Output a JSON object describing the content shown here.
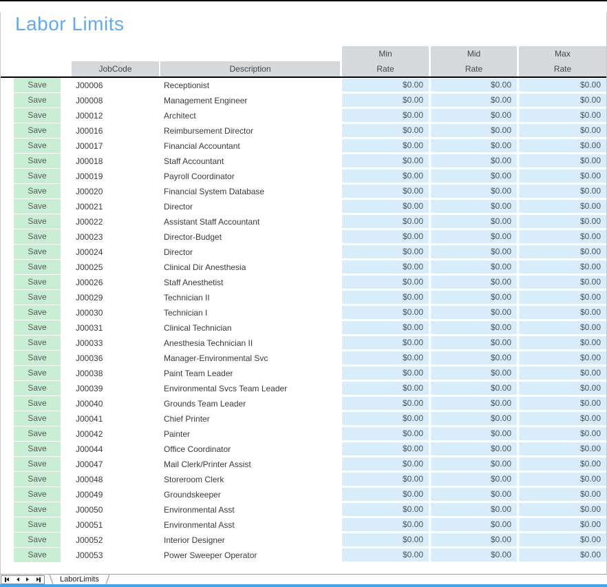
{
  "title": "Labor Limits",
  "table": {
    "headers": {
      "job_code": "JobCode",
      "description": "Description",
      "min_line1": "Min",
      "min_line2": "Rate",
      "mid_line1": "Mid",
      "mid_line2": "Rate",
      "max_line1": "Max",
      "max_line2": "Rate"
    },
    "save_label": "Save",
    "rows": [
      {
        "code": "J00006",
        "desc": "Receptionist",
        "min": "$0.00",
        "mid": "$0.00",
        "max": "$0.00"
      },
      {
        "code": "J00008",
        "desc": "Management Engineer",
        "min": "$0.00",
        "mid": "$0.00",
        "max": "$0.00"
      },
      {
        "code": "J00012",
        "desc": "Architect",
        "min": "$0.00",
        "mid": "$0.00",
        "max": "$0.00"
      },
      {
        "code": "J00016",
        "desc": "Reimbursement Director",
        "min": "$0.00",
        "mid": "$0.00",
        "max": "$0.00"
      },
      {
        "code": "J00017",
        "desc": "Financial Accountant",
        "min": "$0.00",
        "mid": "$0.00",
        "max": "$0.00"
      },
      {
        "code": "J00018",
        "desc": "Staff Accountant",
        "min": "$0.00",
        "mid": "$0.00",
        "max": "$0.00"
      },
      {
        "code": "J00019",
        "desc": "Payroll Coordinator",
        "min": "$0.00",
        "mid": "$0.00",
        "max": "$0.00"
      },
      {
        "code": "J00020",
        "desc": "Financial System Database",
        "min": "$0.00",
        "mid": "$0.00",
        "max": "$0.00"
      },
      {
        "code": "J00021",
        "desc": "Director",
        "min": "$0.00",
        "mid": "$0.00",
        "max": "$0.00"
      },
      {
        "code": "J00022",
        "desc": "Assistant Staff Accountant",
        "min": "$0.00",
        "mid": "$0.00",
        "max": "$0.00"
      },
      {
        "code": "J00023",
        "desc": "Director-Budget",
        "min": "$0.00",
        "mid": "$0.00",
        "max": "$0.00"
      },
      {
        "code": "J00024",
        "desc": "Director",
        "min": "$0.00",
        "mid": "$0.00",
        "max": "$0.00"
      },
      {
        "code": "J00025",
        "desc": "Clinical Dir Anesthesia",
        "min": "$0.00",
        "mid": "$0.00",
        "max": "$0.00"
      },
      {
        "code": "J00026",
        "desc": "Staff Anesthetist",
        "min": "$0.00",
        "mid": "$0.00",
        "max": "$0.00"
      },
      {
        "code": "J00029",
        "desc": "Technician II",
        "min": "$0.00",
        "mid": "$0.00",
        "max": "$0.00"
      },
      {
        "code": "J00030",
        "desc": "Technician I",
        "min": "$0.00",
        "mid": "$0.00",
        "max": "$0.00"
      },
      {
        "code": "J00031",
        "desc": "Clinical Technician",
        "min": "$0.00",
        "mid": "$0.00",
        "max": "$0.00"
      },
      {
        "code": "J00033",
        "desc": "Anesthesia Technician II",
        "min": "$0.00",
        "mid": "$0.00",
        "max": "$0.00"
      },
      {
        "code": "J00036",
        "desc": "Manager-Environmental Svc",
        "min": "$0.00",
        "mid": "$0.00",
        "max": "$0.00"
      },
      {
        "code": "J00038",
        "desc": "Paint Team Leader",
        "min": "$0.00",
        "mid": "$0.00",
        "max": "$0.00"
      },
      {
        "code": "J00039",
        "desc": "Environmental Svcs Team Leader",
        "min": "$0.00",
        "mid": "$0.00",
        "max": "$0.00"
      },
      {
        "code": "J00040",
        "desc": "Grounds Team Leader",
        "min": "$0.00",
        "mid": "$0.00",
        "max": "$0.00"
      },
      {
        "code": "J00041",
        "desc": "Chief Printer",
        "min": "$0.00",
        "mid": "$0.00",
        "max": "$0.00"
      },
      {
        "code": "J00042",
        "desc": "Painter",
        "min": "$0.00",
        "mid": "$0.00",
        "max": "$0.00"
      },
      {
        "code": "J00044",
        "desc": "Office Coordinator",
        "min": "$0.00",
        "mid": "$0.00",
        "max": "$0.00"
      },
      {
        "code": "J00047",
        "desc": "Mail Clerk/Printer Assist",
        "min": "$0.00",
        "mid": "$0.00",
        "max": "$0.00"
      },
      {
        "code": "J00048",
        "desc": "Storeroom Clerk",
        "min": "$0.00",
        "mid": "$0.00",
        "max": "$0.00"
      },
      {
        "code": "J00049",
        "desc": "Groundskeeper",
        "min": "$0.00",
        "mid": "$0.00",
        "max": "$0.00"
      },
      {
        "code": "J00050",
        "desc": "Environmental Asst",
        "min": "$0.00",
        "mid": "$0.00",
        "max": "$0.00"
      },
      {
        "code": "J00051",
        "desc": "Environmental Asst",
        "min": "$0.00",
        "mid": "$0.00",
        "max": "$0.00"
      },
      {
        "code": "J00052",
        "desc": "Interior Designer",
        "min": "$0.00",
        "mid": "$0.00",
        "max": "$0.00"
      },
      {
        "code": "J00053",
        "desc": "Power Sweeper Operator",
        "min": "$0.00",
        "mid": "$0.00",
        "max": "$0.00"
      }
    ]
  },
  "sheet_bar": {
    "tab_label": "LaborLimits",
    "nav_icons": [
      "first-record-icon",
      "previous-record-icon",
      "next-record-icon",
      "last-record-icon"
    ]
  },
  "colors": {
    "title": "#63a9f0",
    "header_bg": "#d6d9db",
    "save_bg": "#c8efd4",
    "rate_bg": "#d9ecf9",
    "rate_text": "#44546a",
    "bottom_line": "#47a3e8"
  }
}
